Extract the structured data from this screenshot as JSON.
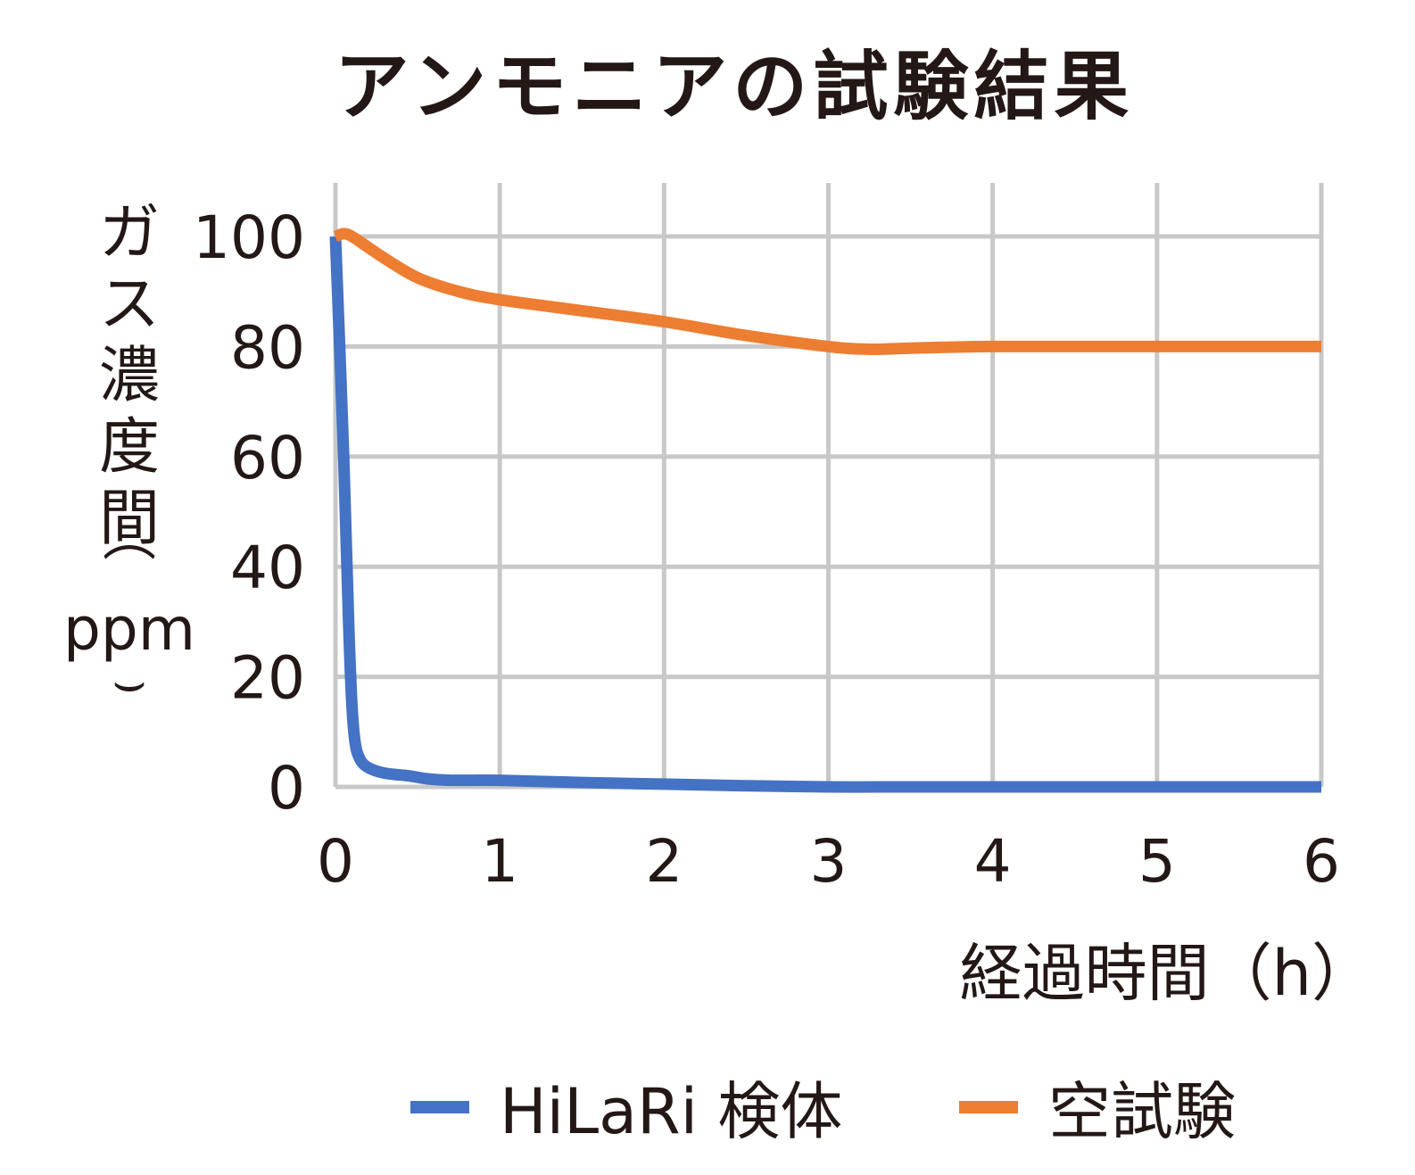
{
  "chart_data": {
    "type": "line",
    "title": "アンモニアの試験結果",
    "xlabel": "経過時間（h）",
    "ylabel": "ガス濃度間",
    "ylabel_unit": "ppm",
    "xlim": [
      0,
      6
    ],
    "ylim": [
      0,
      100
    ],
    "x_ticks": [
      "0",
      "1",
      "2",
      "3",
      "4",
      "5",
      "6"
    ],
    "y_ticks": [
      "0",
      "20",
      "40",
      "60",
      "80",
      "100"
    ],
    "grid": true,
    "legend_position": "bottom",
    "series": [
      {
        "name": "HiLaRi 検体",
        "color": "#4472C4",
        "x": [
          0,
          0.05,
          0.08,
          0.1,
          0.12,
          0.15,
          0.2,
          0.3,
          0.45,
          0.55,
          0.7,
          1.0,
          1.5,
          2.0,
          2.5,
          3.0,
          3.5,
          4.0,
          5.0,
          6.0
        ],
        "y": [
          100,
          60,
          30,
          15,
          8,
          5,
          3.5,
          2.5,
          2,
          1.5,
          1.2,
          1.2,
          0.8,
          0.5,
          0.2,
          0,
          0,
          0,
          0,
          0
        ]
      },
      {
        "name": "空試験",
        "color": "#ED7D31",
        "x": [
          0,
          0.05,
          0.1,
          0.2,
          0.3,
          0.5,
          0.75,
          1.0,
          1.5,
          2.0,
          2.5,
          3.0,
          3.25,
          3.5,
          4.0,
          5.0,
          6.0
        ],
        "y": [
          100,
          100.5,
          100,
          98,
          96,
          92.5,
          90,
          88.5,
          86.5,
          84.5,
          82,
          80,
          79.5,
          79.7,
          80,
          80,
          80
        ]
      }
    ]
  }
}
